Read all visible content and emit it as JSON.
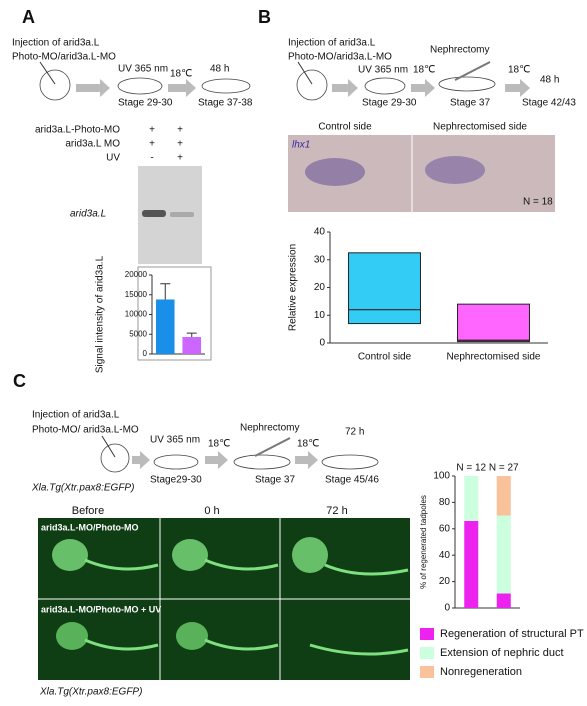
{
  "panels": {
    "A": {
      "label": "A",
      "injection": [
        "Injection of arid3a.L",
        "Photo-MO/arid3a.L-MO"
      ],
      "steps": [
        {
          "top": "UV 365 nm",
          "bottom": "Stage 29-30"
        },
        {
          "top": "48 h",
          "bottom": "Stage 37-38"
        }
      ],
      "temp": "18℃",
      "gel": {
        "rows": [
          {
            "name": "arid3a.L-Photo-MO",
            "marks": [
              "+",
              "+"
            ]
          },
          {
            "name": "arid3a.L MO",
            "marks": [
              "+",
              "+"
            ]
          },
          {
            "name": "UV",
            "marks": [
              "-",
              "+"
            ]
          }
        ],
        "band_label": "arid3a.L"
      }
    },
    "B": {
      "label": "B",
      "injection": [
        "Injection of arid3a.L",
        "Photo-MO/arid3a.L-MO"
      ],
      "steps": [
        {
          "top": "UV 365 nm",
          "bottom": "Stage 29-30"
        },
        {
          "top": "Nephrectomy",
          "bottom": "Stage 37"
        },
        {
          "top": "48 h",
          "bottom": "Stage 42/43"
        }
      ],
      "temps": [
        "18℃",
        "18℃"
      ],
      "photo": {
        "left": "Control side",
        "right": "Nephrectomised  side",
        "gene": "lhx1",
        "n": "N = 18"
      }
    },
    "C": {
      "label": "C",
      "injection": [
        "Injection of arid3a.L",
        "Photo-MO/ arid3a.L-MO"
      ],
      "line": "Xla.Tg(Xtr.pax8:EGFP)",
      "steps": [
        {
          "top": "UV 365 nm",
          "bottom": "Stage29-30"
        },
        {
          "top": "Nephrectomy",
          "bottom": "Stage 37"
        },
        {
          "top": "72 h",
          "bottom": "Stage 45/46"
        }
      ],
      "temps": [
        "18℃",
        "18℃"
      ],
      "images": {
        "columns": [
          "Before",
          "0 h",
          "72 h"
        ],
        "rows": [
          "arid3a.L-MO/Photo-MO",
          "arid3a.L-MO/Photo-MO + UV"
        ],
        "footer": "Xla.Tg(Xtr.pax8:EGFP)"
      }
    }
  },
  "chart_data": [
    {
      "type": "bar",
      "ylabel": "Signal intensity of arid3a.L",
      "values": [
        13800,
        4300
      ],
      "errors": [
        4000,
        1000
      ],
      "colors": [
        "#1a8fe8",
        "#cc66ff"
      ],
      "ylim": [
        0,
        20000
      ],
      "yticks": [
        0,
        5000,
        10000,
        15000,
        20000
      ]
    },
    {
      "type": "box",
      "ylabel": "Relative expression",
      "categories": [
        "Control side",
        "Nephrectomised side"
      ],
      "boxes": [
        {
          "low": 7,
          "median": 12,
          "high": 32.5
        },
        {
          "low": 0.5,
          "median": 1,
          "high": 14
        }
      ],
      "colors": [
        "#33ccf5",
        "#ff66ff"
      ],
      "ylim": [
        0,
        40
      ],
      "yticks": [
        0,
        10,
        20,
        30,
        40
      ]
    },
    {
      "type": "stacked_bar",
      "ylabel": "% of regenerated tadpoles",
      "categories": [
        "N = 12",
        "N = 27"
      ],
      "series": [
        {
          "name": "Regeneration of structural PT",
          "color": "#ee22ee",
          "values": [
            66,
            11
          ]
        },
        {
          "name": "Extension of nephric duct",
          "color": "#ccffdd",
          "values": [
            34,
            59
          ]
        },
        {
          "name": "Nonregeneration",
          "color": "#f9c29a",
          "values": [
            0,
            30
          ]
        }
      ],
      "ylim": [
        0,
        100
      ],
      "yticks": [
        0,
        20,
        40,
        60,
        80,
        100
      ]
    }
  ]
}
